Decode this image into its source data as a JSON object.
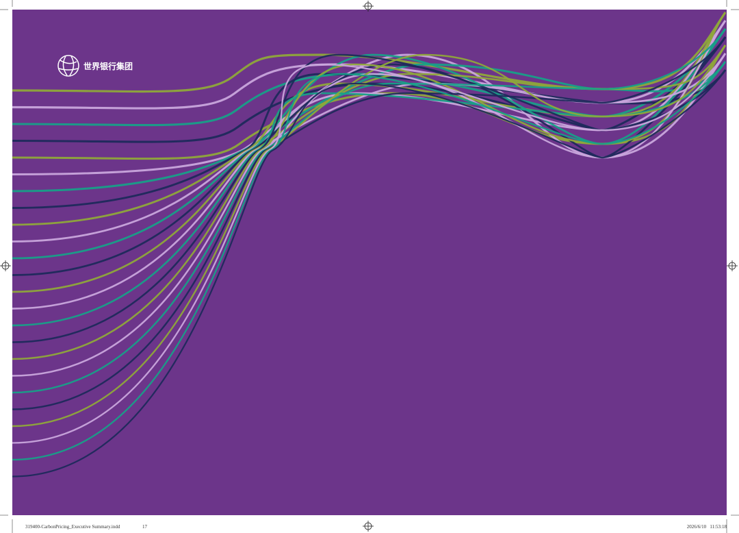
{
  "logo": {
    "text": "世界银行集团"
  },
  "footer": {
    "file": "319400-CarbonPricing_Executive Summary.indd",
    "page": "17",
    "timestamp": "2026/6/10   11:53:18"
  }
}
